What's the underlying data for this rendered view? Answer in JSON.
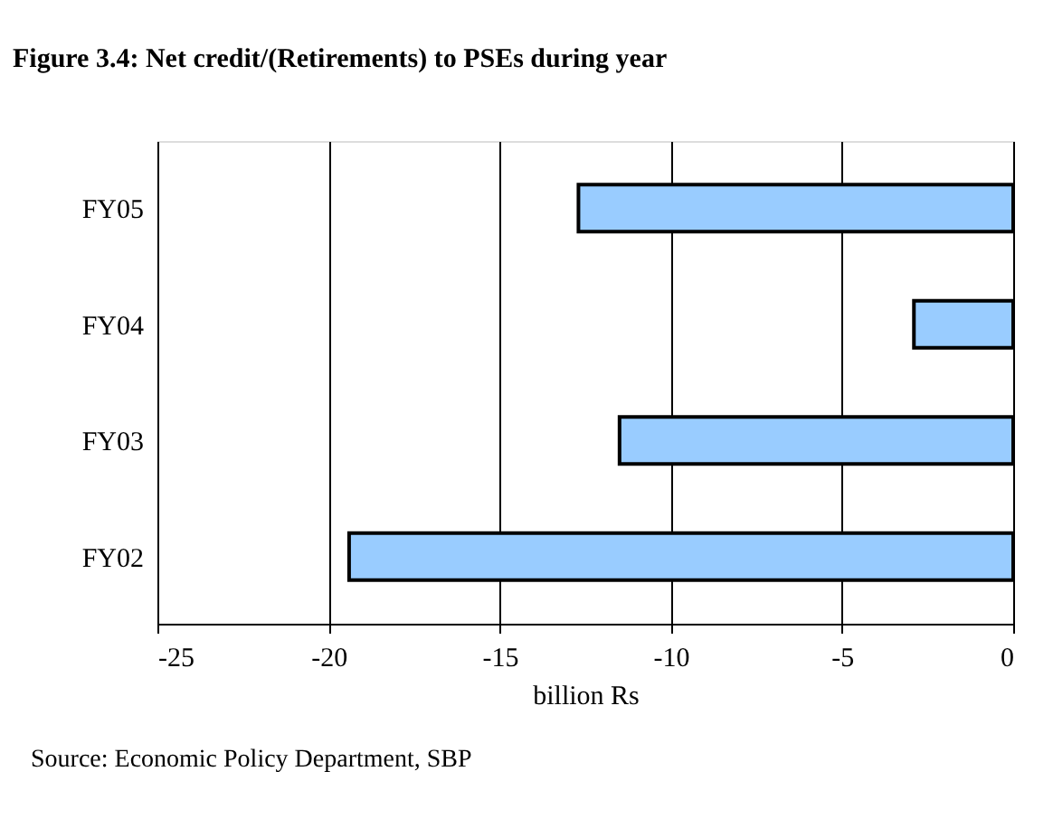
{
  "chart_data": {
    "type": "bar",
    "orientation": "horizontal",
    "title": "Figure 3.4: Net credit/(Retirements) to PSEs during year",
    "xlabel": "billion Rs",
    "categories": [
      "FY05",
      "FY04",
      "FY03",
      "FY02"
    ],
    "values": [
      -12.7,
      -2.9,
      -11.5,
      -19.4
    ],
    "color": "#99ccff",
    "xlim": [
      -25,
      0
    ],
    "xticks": [
      -25,
      -20,
      -15,
      -10,
      -5,
      0
    ],
    "grid": "x",
    "annotations": [
      "Source: Economic Policy Department, SBP"
    ]
  }
}
